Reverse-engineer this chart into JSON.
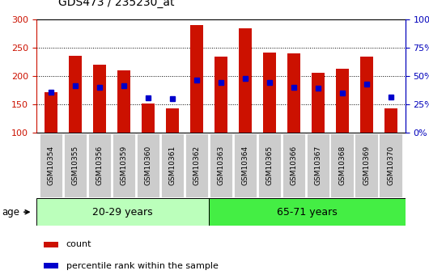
{
  "title": "GDS473 / 235230_at",
  "samples": [
    "GSM10354",
    "GSM10355",
    "GSM10356",
    "GSM10359",
    "GSM10360",
    "GSM10361",
    "GSM10362",
    "GSM10363",
    "GSM10364",
    "GSM10365",
    "GSM10366",
    "GSM10367",
    "GSM10368",
    "GSM10369",
    "GSM10370"
  ],
  "counts": [
    172,
    236,
    220,
    210,
    152,
    143,
    290,
    235,
    284,
    241,
    240,
    206,
    213,
    235,
    143
  ],
  "percentile_values": [
    172,
    183,
    180,
    183,
    162,
    160,
    193,
    188,
    196,
    188,
    180,
    178,
    170,
    185,
    163
  ],
  "ylim_left": [
    100,
    300
  ],
  "ylim_right": [
    0,
    100
  ],
  "group1_label": "20-29 years",
  "group2_label": "65-71 years",
  "n_group1": 7,
  "n_group2": 8,
  "bar_color": "#cc1100",
  "dot_color": "#0000cc",
  "group1_bg": "#bbffbb",
  "group2_bg": "#44ee44",
  "tick_bg": "#cccccc",
  "left_axis_color": "#cc1100",
  "right_axis_color": "#0000bb",
  "yticks_left": [
    100,
    150,
    200,
    250,
    300
  ],
  "yticks_right": [
    0,
    25,
    50,
    75,
    100
  ],
  "bar_width": 0.55
}
